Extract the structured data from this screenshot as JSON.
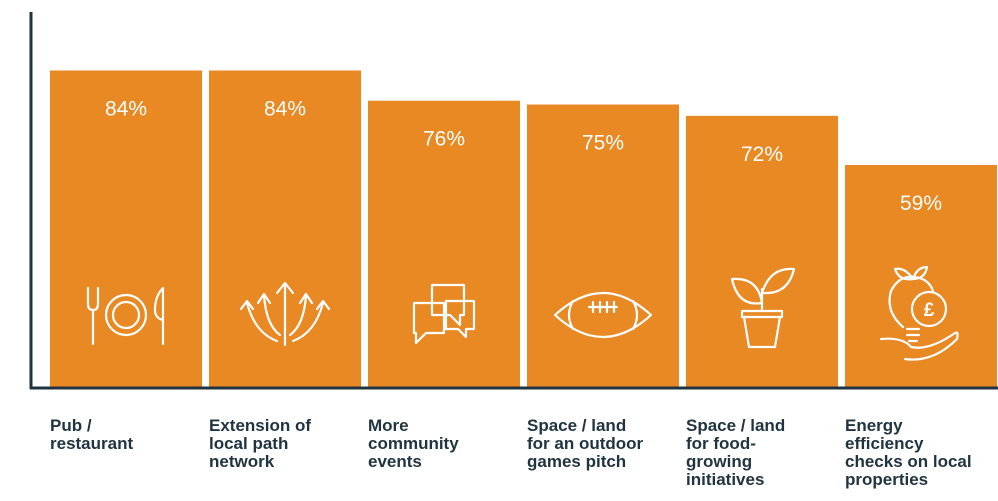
{
  "chart_data": {
    "type": "bar",
    "categories": [
      "Pub /\nrestaurant",
      "Extension of\nlocal path\nnetwork",
      "More\ncommunity\nevents",
      "Space / land\nfor an outdoor\ngames pitch",
      "Space / land\nfor food-\ngrowing\ninitiatives",
      "Energy\nefficiency\nchecks on local\nproperties"
    ],
    "values": [
      84,
      84,
      76,
      75,
      72,
      59
    ],
    "value_labels": [
      "84%",
      "84%",
      "76%",
      "75%",
      "72%",
      "59%"
    ],
    "icons": [
      "plate-cutlery-icon",
      "branching-arrows-icon",
      "speech-bubbles-icon",
      "rugby-ball-icon",
      "potted-plant-icon",
      "lightbulb-pound-icon"
    ],
    "ylim": [
      0,
      100
    ],
    "grid": false,
    "colors": {
      "bar": "#E88924",
      "axis": "#1f3340",
      "label_text": "#1f3340",
      "value_text": "#ffffff"
    }
  }
}
